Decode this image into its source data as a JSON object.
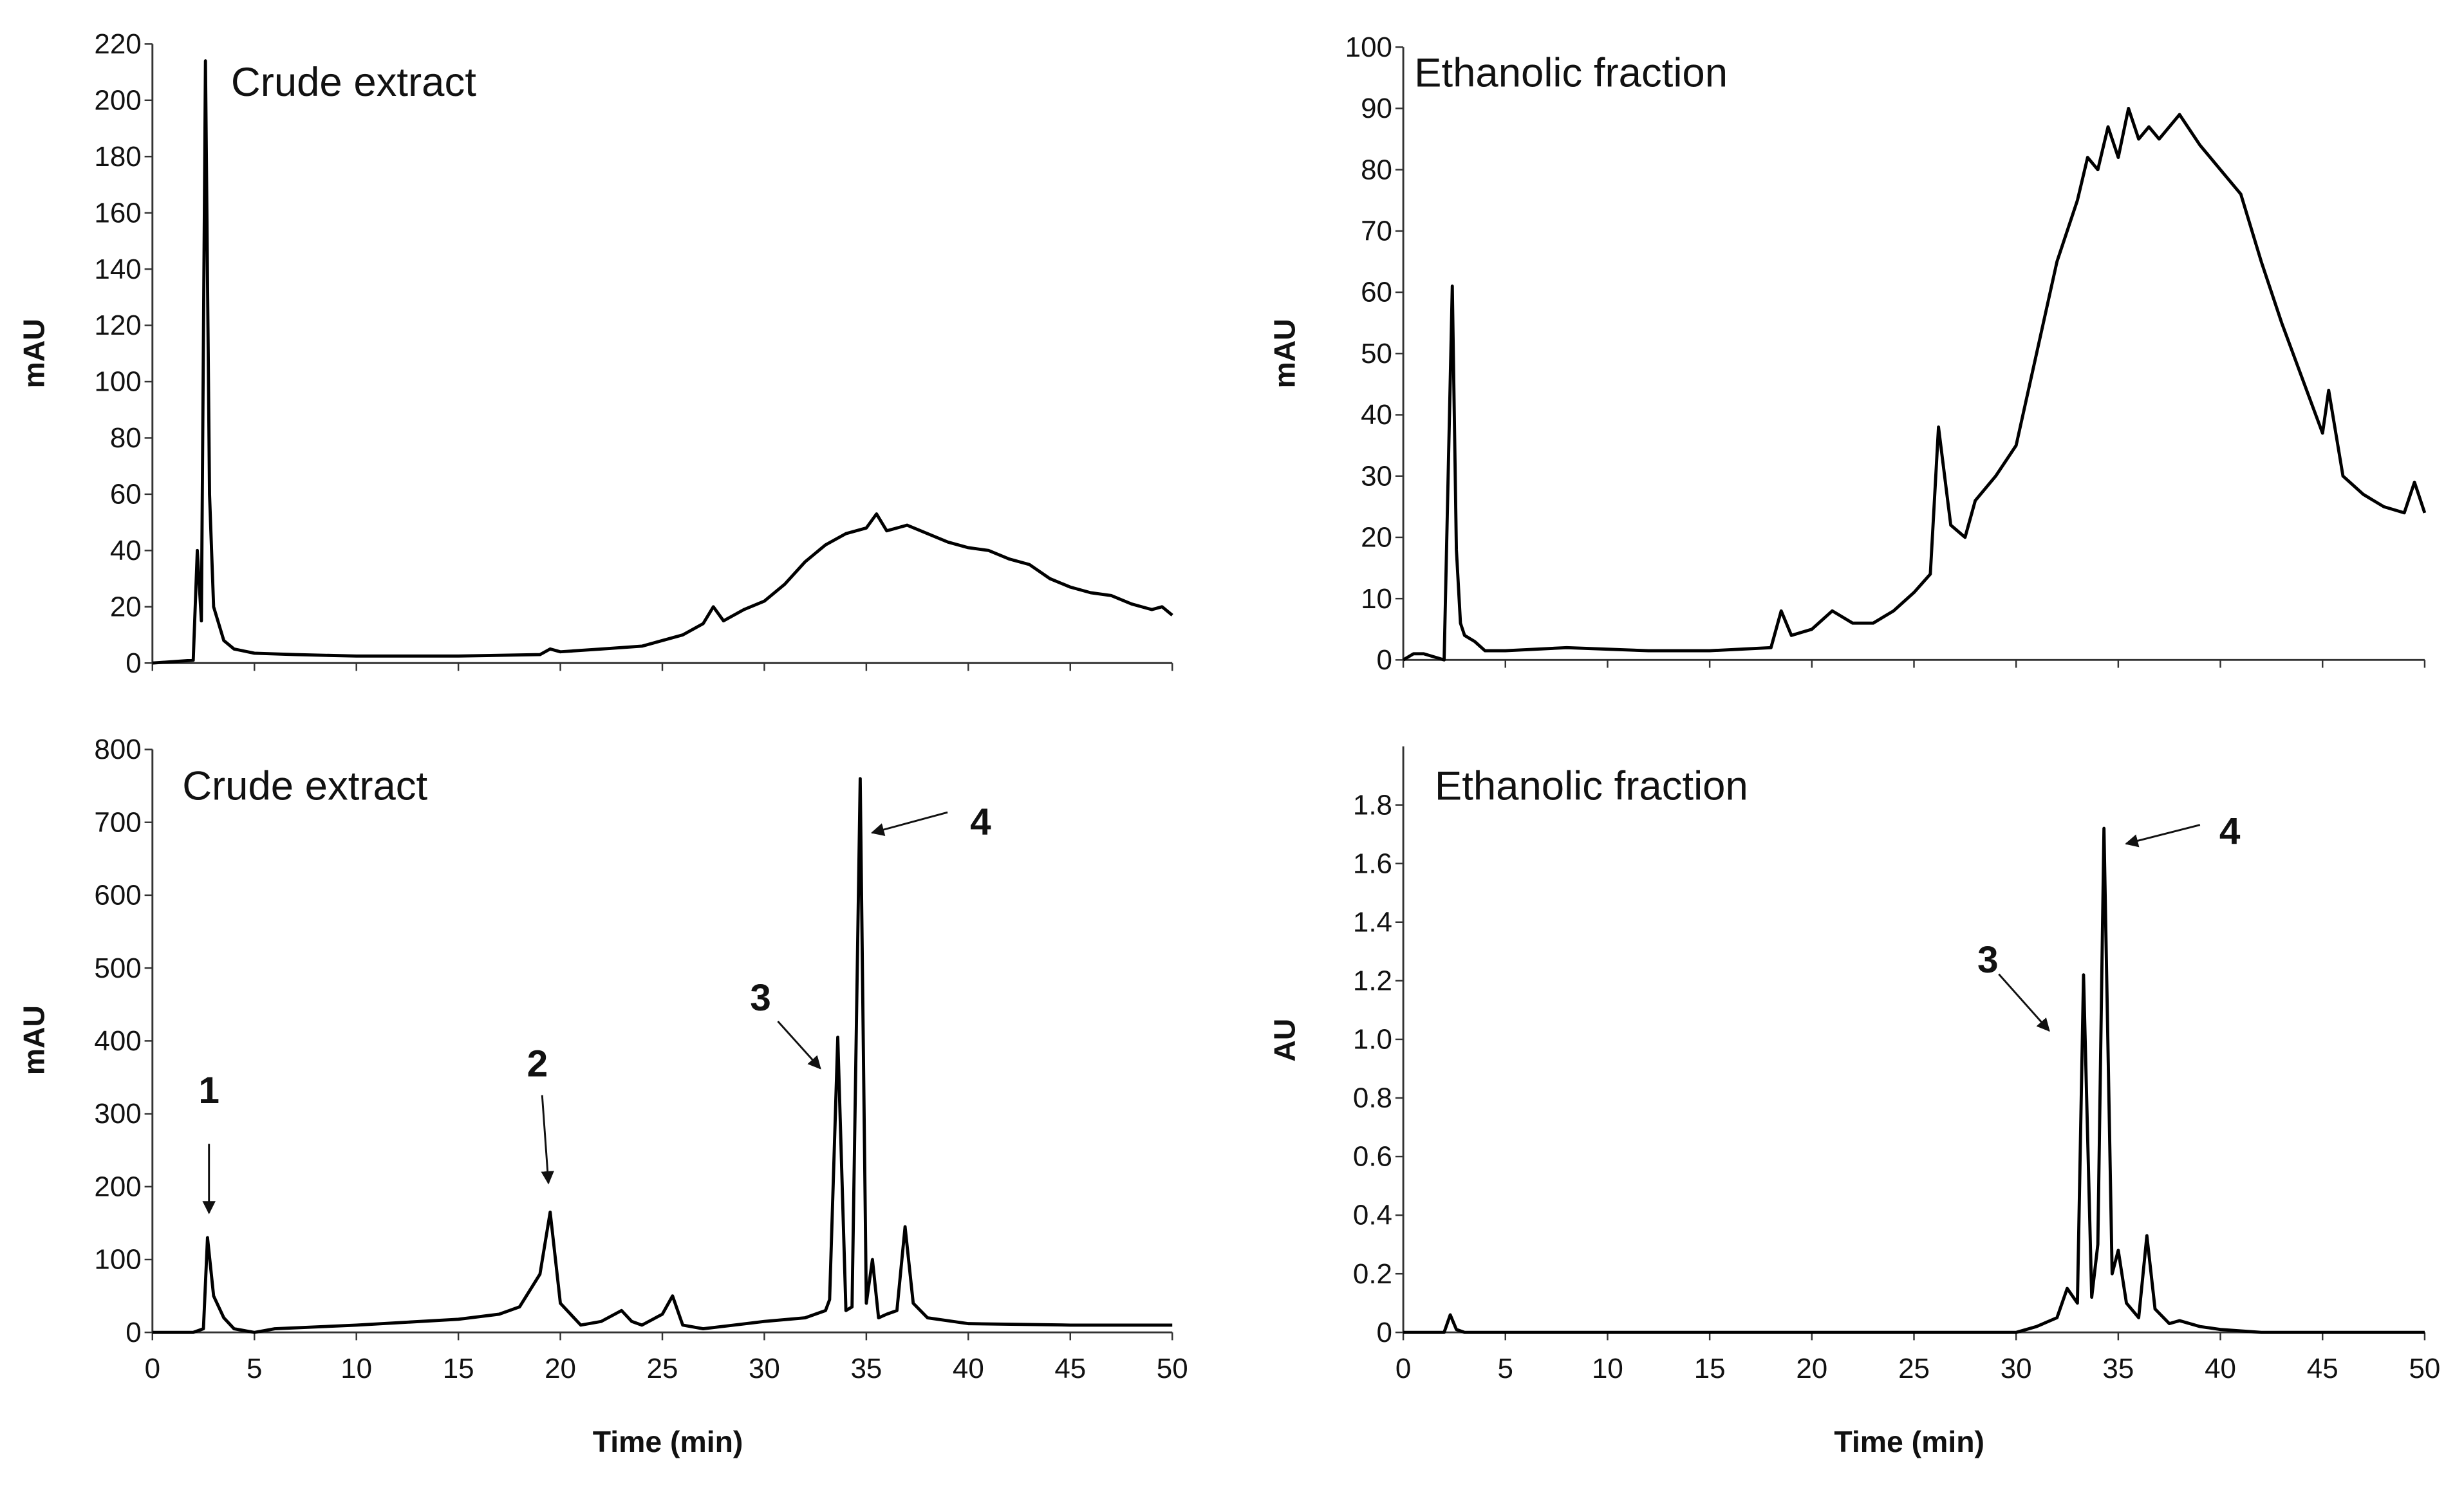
{
  "chart_data": [
    {
      "type": "line",
      "title": "Crude extract",
      "ylabel": "mAU",
      "color": "#000000",
      "xtick_labels": false,
      "x": [
        0,
        1,
        2,
        2.2,
        2.4,
        2.6,
        2.8,
        3,
        3.5,
        4,
        5,
        7,
        10,
        15,
        19,
        19.5,
        20,
        22,
        24,
        26,
        27,
        27.5,
        28,
        29,
        30,
        31,
        32,
        33,
        34,
        35,
        35.5,
        36,
        37,
        38,
        39,
        40,
        41,
        42,
        43,
        44,
        45,
        46,
        47,
        48,
        49,
        49.5,
        50
      ],
      "values": [
        0,
        0.5,
        1,
        40,
        15,
        214,
        60,
        20,
        8,
        5,
        3.5,
        3,
        2.5,
        2.5,
        3,
        5,
        4,
        5,
        6,
        10,
        14,
        20,
        15,
        19,
        22,
        28,
        36,
        42,
        46,
        48,
        53,
        47,
        49,
        46,
        43,
        41,
        40,
        37,
        35,
        30,
        27,
        25,
        24,
        21,
        19,
        20,
        17
      ],
      "xlim": [
        0,
        50
      ],
      "xticks": [
        0,
        5,
        10,
        15,
        20,
        25,
        30,
        35,
        40,
        45,
        50
      ],
      "ylim": [
        0,
        220
      ],
      "yticks": [
        0,
        20,
        40,
        60,
        80,
        100,
        120,
        140,
        160,
        180,
        200,
        220
      ]
    },
    {
      "type": "line",
      "title": "Ethanolic fraction",
      "ylabel": "mAU",
      "color": "#000000",
      "xtick_labels": false,
      "x": [
        0,
        0.5,
        1,
        1.5,
        2,
        2.4,
        2.6,
        2.8,
        3,
        3.5,
        4,
        5,
        8,
        12,
        15,
        18,
        18.5,
        19,
        20,
        21,
        22,
        23,
        24,
        25,
        25.8,
        26.2,
        26.8,
        27.5,
        28,
        29,
        30,
        31,
        32,
        33,
        33.5,
        34,
        34.5,
        35,
        35.5,
        36,
        36.5,
        37,
        38,
        39,
        40,
        41,
        42,
        43,
        44,
        45,
        45.3,
        46,
        47,
        48,
        49,
        49.5,
        50
      ],
      "values": [
        0,
        1,
        1,
        0.5,
        0,
        61,
        18,
        6,
        4,
        3,
        1.5,
        1.5,
        2,
        1.5,
        1.5,
        2,
        8,
        4,
        5,
        8,
        6,
        6,
        8,
        11,
        14,
        38,
        22,
        20,
        26,
        30,
        35,
        50,
        65,
        75,
        82,
        80,
        87,
        82,
        90,
        85,
        87,
        85,
        89,
        84,
        80,
        76,
        65,
        55,
        46,
        37,
        44,
        30,
        27,
        25,
        24,
        29,
        24
      ],
      "xlim": [
        0,
        50
      ],
      "xticks": [
        0,
        5,
        10,
        15,
        20,
        25,
        30,
        35,
        40,
        45,
        50
      ],
      "ylim": [
        0,
        100
      ],
      "yticks": [
        0,
        10,
        20,
        30,
        40,
        50,
        60,
        70,
        80,
        90,
        100
      ]
    },
    {
      "type": "line",
      "title": "Crude extract",
      "ylabel": "mAU",
      "xlabel": "Time (min)",
      "color": "#000000",
      "xtick_labels": true,
      "x": [
        0,
        2,
        2.5,
        2.7,
        3,
        3.5,
        4,
        5,
        6,
        10,
        15,
        17,
        18,
        19,
        19.5,
        20,
        21,
        22,
        23,
        23.5,
        24,
        25,
        25.5,
        26,
        27,
        30,
        32,
        33,
        33.2,
        33.6,
        34,
        34.3,
        34.7,
        35,
        35.3,
        35.6,
        36,
        36.5,
        36.9,
        37.3,
        38,
        40,
        45,
        50
      ],
      "values": [
        0,
        0,
        5,
        130,
        50,
        20,
        5,
        0,
        5,
        10,
        18,
        25,
        35,
        80,
        165,
        40,
        10,
        15,
        30,
        15,
        10,
        25,
        50,
        10,
        5,
        15,
        20,
        30,
        45,
        405,
        30,
        35,
        760,
        40,
        100,
        20,
        25,
        30,
        145,
        40,
        20,
        12,
        10,
        10
      ],
      "xlim": [
        0,
        50
      ],
      "xticks": [
        0,
        5,
        10,
        15,
        20,
        25,
        30,
        35,
        40,
        45,
        50
      ],
      "ylim": [
        0,
        800
      ],
      "yticks": [
        0,
        100,
        200,
        300,
        400,
        500,
        600,
        700,
        800
      ],
      "annotations": [
        "1",
        "2",
        "3",
        "4"
      ]
    },
    {
      "type": "line",
      "title": "Ethanolic fraction",
      "ylabel": "AU",
      "xlabel": "Time (min)",
      "color": "#000000",
      "xtick_labels": true,
      "x": [
        0,
        2,
        2.3,
        2.6,
        3,
        10,
        20,
        30,
        31,
        32,
        32.5,
        33,
        33.3,
        33.7,
        34,
        34.3,
        34.7,
        35,
        35.4,
        36,
        36.4,
        36.8,
        37.5,
        38,
        39,
        40,
        42,
        50
      ],
      "values": [
        0,
        0,
        0.06,
        0.01,
        0,
        0,
        0,
        0,
        0.02,
        0.05,
        0.15,
        0.1,
        1.22,
        0.12,
        0.3,
        1.72,
        0.2,
        0.28,
        0.1,
        0.05,
        0.33,
        0.08,
        0.03,
        0.04,
        0.02,
        0.01,
        0,
        0
      ],
      "xlim": [
        0,
        50
      ],
      "xticks": [
        0,
        5,
        10,
        15,
        20,
        25,
        30,
        35,
        40,
        45,
        50
      ],
      "ylim": [
        0,
        2
      ],
      "yticks": [
        0,
        0.2,
        0.4,
        0.6,
        0.8,
        {
          "value": 1,
          "label": "1.0"
        },
        1.2,
        1.4,
        1.6,
        1.8
      ],
      "annotations": [
        "3",
        "4"
      ]
    }
  ]
}
